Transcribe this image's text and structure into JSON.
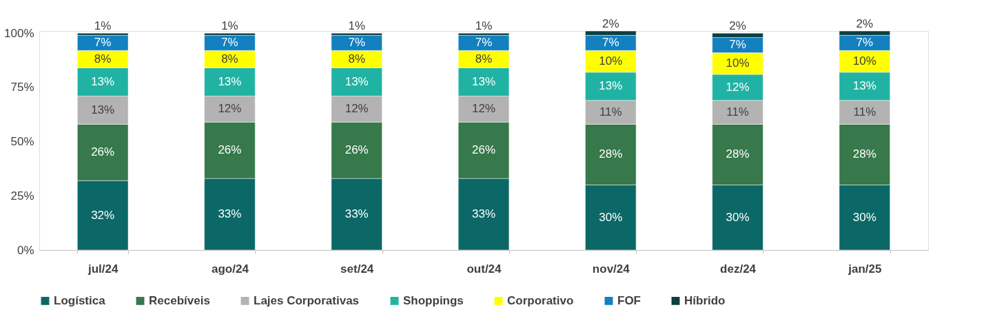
{
  "chart_data": {
    "type": "bar",
    "stacked": true,
    "legend": "bottom",
    "grid": false,
    "categories": [
      "jul/24",
      "ago/24",
      "set/24",
      "out/24",
      "nov/24",
      "dez/24",
      "jan/25"
    ],
    "ylim": [
      0,
      101
    ],
    "yticks": [
      {
        "value": 0,
        "label": "0%"
      },
      {
        "value": 25,
        "label": "25%"
      },
      {
        "value": 50,
        "label": "50%"
      },
      {
        "value": 75,
        "label": "75%"
      },
      {
        "value": 100,
        "label": "100%"
      }
    ],
    "series": [
      {
        "name": "Logística",
        "color": "#0b6867",
        "values": [
          32,
          33,
          33,
          33,
          30,
          30,
          30
        ],
        "value_labels": [
          "32%",
          "33%",
          "33%",
          "33%",
          "30%",
          "30%",
          "30%"
        ]
      },
      {
        "name": "Recebíveis",
        "color": "#37794a",
        "values": [
          26,
          26,
          26,
          26,
          28,
          28,
          28
        ],
        "value_labels": [
          "26%",
          "26%",
          "26%",
          "26%",
          "28%",
          "28%",
          "28%"
        ]
      },
      {
        "name": "Lajes Corporativas",
        "color": "#b3b3b3",
        "values": [
          13,
          12,
          12,
          12,
          11,
          11,
          11
        ],
        "value_labels": [
          "13%",
          "12%",
          "12%",
          "12%",
          "11%",
          "11%",
          "11%"
        ]
      },
      {
        "name": "Shoppings",
        "color": "#20b3a3",
        "values": [
          13,
          13,
          13,
          13,
          13,
          12,
          13
        ],
        "value_labels": [
          "13%",
          "13%",
          "13%",
          "13%",
          "13%",
          "12%",
          "13%"
        ]
      },
      {
        "name": "Corporativo",
        "color": "#ffff00",
        "values": [
          8,
          8,
          8,
          8,
          10,
          10,
          10
        ],
        "value_labels": [
          "8%",
          "8%",
          "8%",
          "8%",
          "10%",
          "10%",
          "10%"
        ]
      },
      {
        "name": "FOF",
        "color": "#1380c0",
        "values": [
          7,
          7,
          7,
          7,
          7,
          7,
          7
        ],
        "value_labels": [
          "7%",
          "7%",
          "7%",
          "7%",
          "7%",
          "7%",
          "7%"
        ]
      },
      {
        "name": "Híbrido",
        "color": "#0c3f43",
        "values": [
          1,
          1,
          1,
          1,
          2,
          2,
          2
        ],
        "value_labels": [
          "1%",
          "1%",
          "1%",
          "1%",
          "2%",
          "2%",
          "2%"
        ]
      }
    ]
  }
}
